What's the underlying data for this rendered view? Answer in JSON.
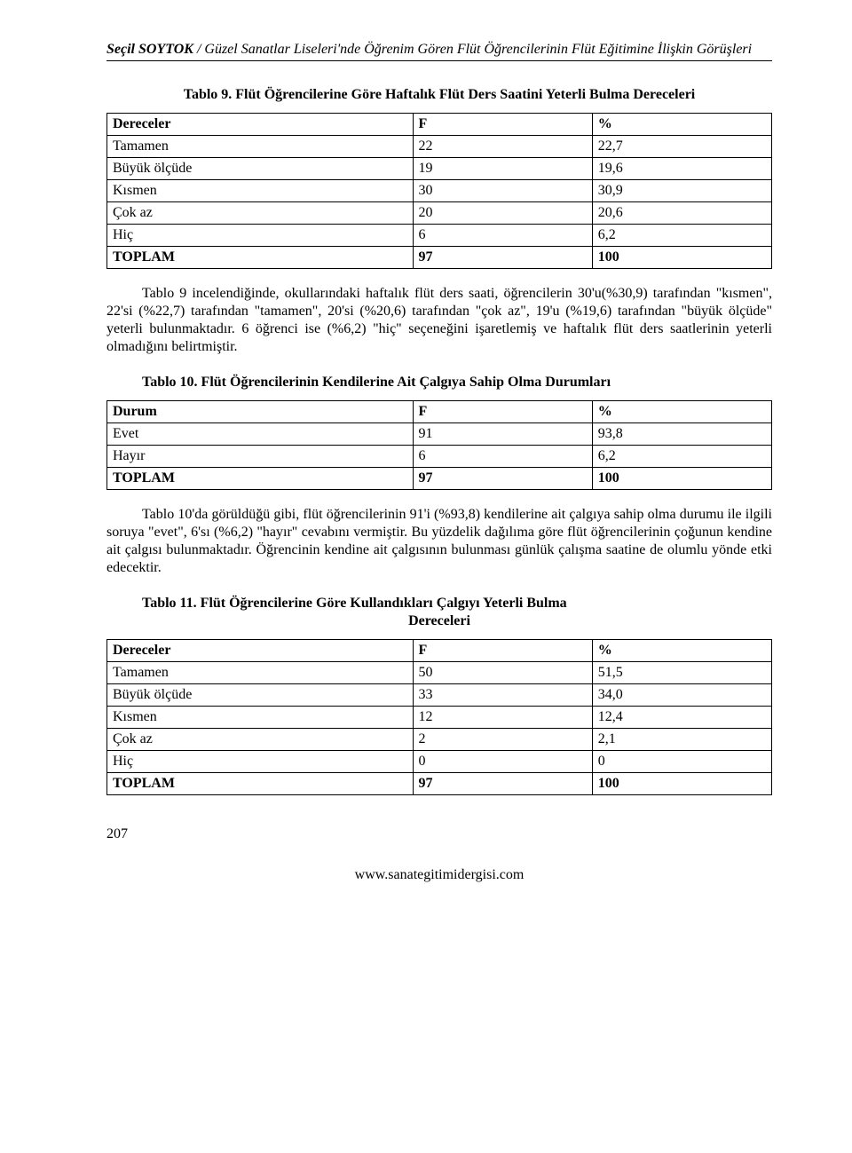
{
  "header": {
    "author": "Seçil SOYTOK",
    "sep": " / ",
    "title_rest": "Güzel Sanatlar Liseleri'nde Öğrenim Gören Flüt Öğrencilerinin Flüt Eğitimine İlişkin Görüşleri"
  },
  "table9": {
    "title": "Tablo 9. Flüt Öğrencilerine Göre Haftalık Flüt Ders Saatini Yeterli Bulma Dereceleri",
    "columns": [
      "Dereceler",
      "F",
      "%"
    ],
    "rows": [
      [
        "Tamamen",
        "22",
        "22,7"
      ],
      [
        "Büyük ölçüde",
        "19",
        "19,6"
      ],
      [
        "Kısmen",
        "30",
        "30,9"
      ],
      [
        "Çok az",
        "20",
        "20,6"
      ],
      [
        "Hiç",
        "6",
        "6,2"
      ]
    ],
    "total": [
      "TOPLAM",
      "97",
      "100"
    ]
  },
  "para_after_t9": "Tablo 9 incelendiğinde, okullarındaki haftalık flüt ders saati, öğrencilerin 30'u(%30,9) tarafından \"kısmen\", 22'si (%22,7) tarafından \"tamamen\", 20'si (%20,6) tarafından \"çok az\", 19'u (%19,6) tarafından \"büyük ölçüde\" yeterli bulunmaktadır. 6 öğrenci ise (%6,2) \"hiç\" seçeneğini işaretlemiş ve haftalık flüt ders saatlerinin yeterli olmadığını belirtmiştir.",
  "table10": {
    "title": "Tablo 10. Flüt Öğrencilerinin Kendilerine Ait Çalgıya Sahip Olma Durumları",
    "columns": [
      "Durum",
      "F",
      "%"
    ],
    "rows": [
      [
        "Evet",
        "91",
        "93,8"
      ],
      [
        "Hayır",
        "6",
        "6,2"
      ]
    ],
    "total": [
      "TOPLAM",
      "97",
      "100"
    ]
  },
  "para_after_t10": "Tablo 10'da görüldüğü gibi, flüt öğrencilerinin 91'i (%93,8) kendilerine ait çalgıya sahip olma durumu ile ilgili soruya \"evet\", 6'sı (%6,2) \"hayır\" cevabını vermiştir. Bu yüzdelik dağılıma göre flüt öğrencilerinin çoğunun kendine ait çalgısı bulunmaktadır. Öğrencinin kendine ait çalgısının bulunması günlük çalışma saatine de olumlu yönde etki edecektir.",
  "table11": {
    "title_line1": "Tablo 11.  Flüt Öğrencilerine Göre Kullandıkları Çalgıyı Yeterli Bulma",
    "title_line2": "Dereceleri",
    "columns": [
      "Dereceler",
      "F",
      "%"
    ],
    "rows": [
      [
        "Tamamen",
        "50",
        "51,5"
      ],
      [
        "Büyük ölçüde",
        "33",
        "34,0"
      ],
      [
        "Kısmen",
        "12",
        "12,4"
      ],
      [
        "Çok az",
        "2",
        "2,1"
      ],
      [
        "Hiç",
        "0",
        "0"
      ]
    ],
    "total": [
      "TOPLAM",
      "97",
      "100"
    ]
  },
  "page_number": "207",
  "footer_url": "www.sanategitimidergisi.com"
}
